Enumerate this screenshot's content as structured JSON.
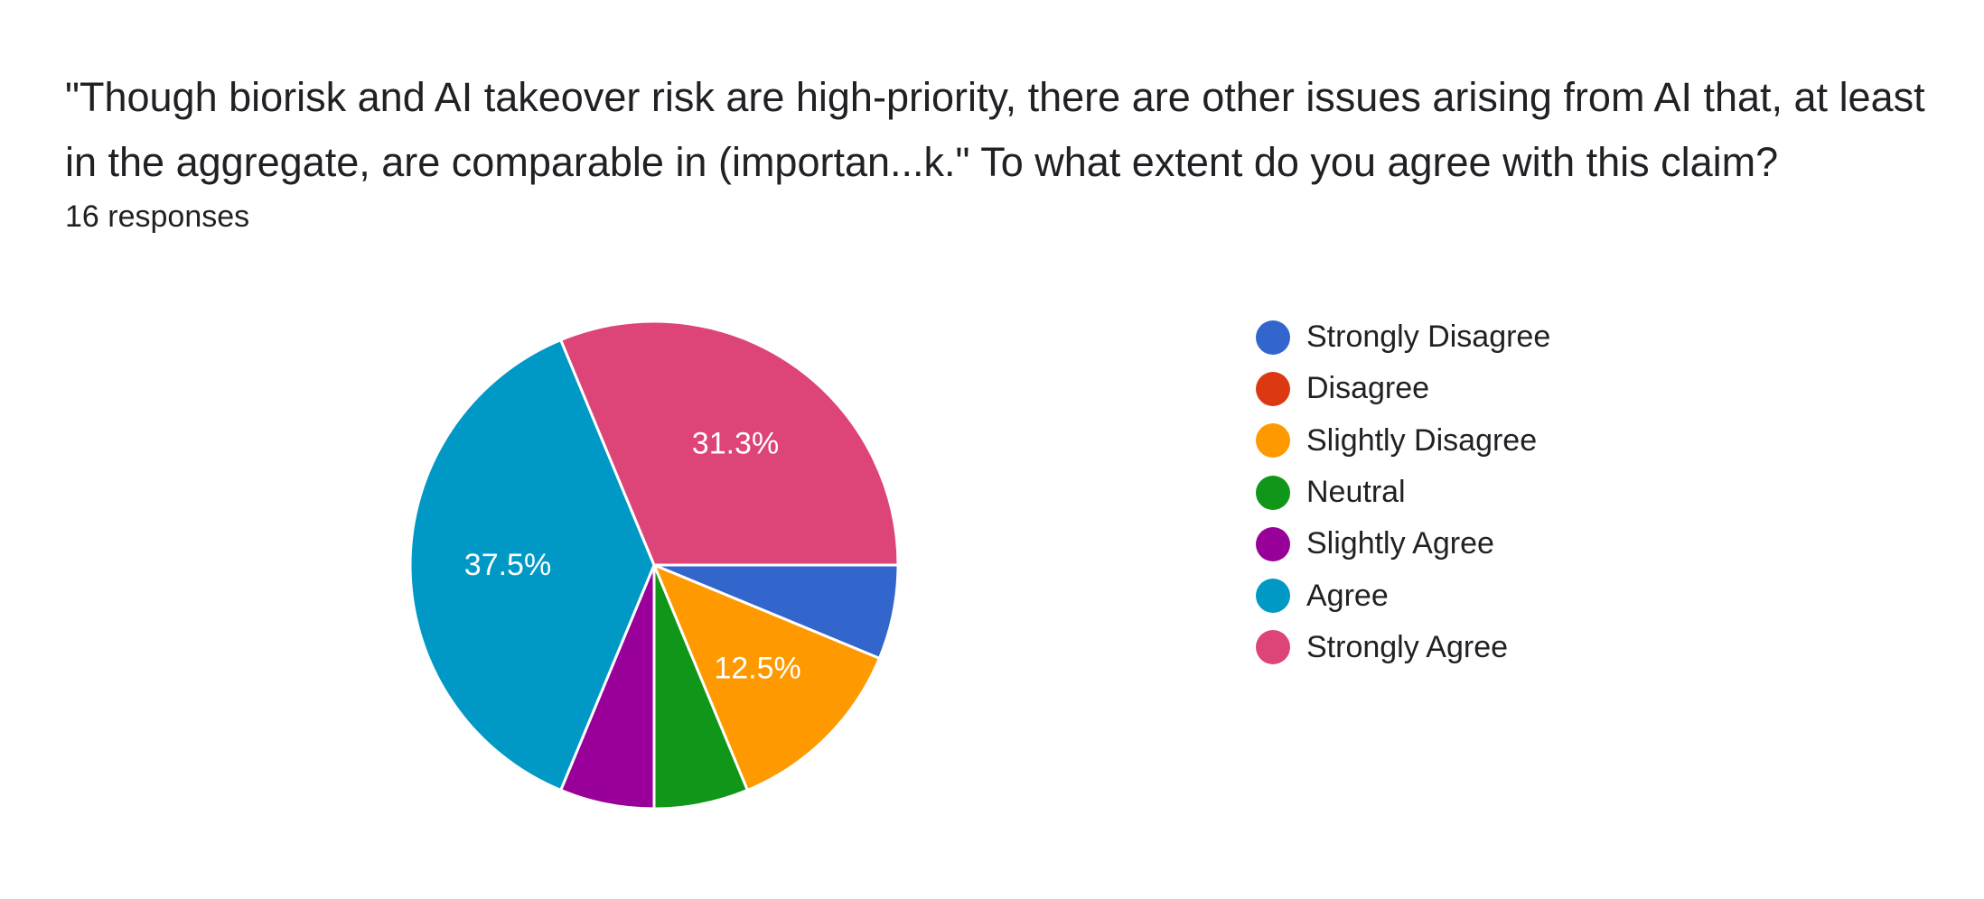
{
  "question": {
    "title": "\"Though biorisk and AI takeover risk are high-priority, there are other issues arising from AI that, at least in the aggregate, are comparable in (importan...k.\"  To what extent do you agree with this claim?",
    "response_count": "16 responses"
  },
  "chart_data": {
    "type": "pie",
    "title": "\"Though biorisk and AI takeover risk are high-priority, there are other issues arising from AI that, at least in the aggregate, are comparable in (importan...k.\"  To what extent do you agree with this claim?",
    "total_responses": 16,
    "start_angle": "3 o'clock",
    "direction": "clockwise",
    "legend_position": "right",
    "categories": [
      "Strongly Disagree",
      "Disagree",
      "Slightly Disagree",
      "Neutral",
      "Slightly Agree",
      "Agree",
      "Strongly Agree"
    ],
    "counts": [
      1,
      0,
      2,
      1,
      1,
      6,
      5
    ],
    "percentages": [
      6.3,
      0,
      12.5,
      6.3,
      6.3,
      37.5,
      31.3
    ],
    "colors": [
      "#3366cc",
      "#dc3912",
      "#ff9900",
      "#109618",
      "#990099",
      "#0099c6",
      "#dd4477"
    ],
    "data_labels": [
      "",
      "",
      "12.5%",
      "",
      "",
      "37.5%",
      "31.3%"
    ]
  }
}
